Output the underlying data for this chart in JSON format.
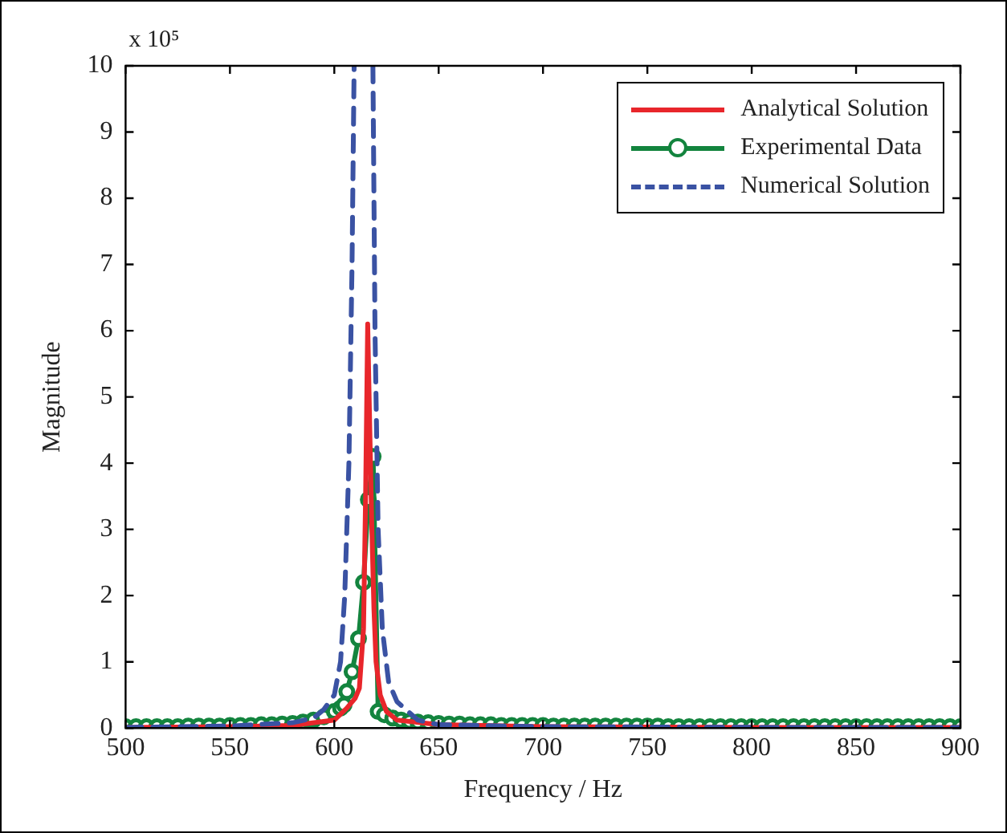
{
  "chart_data": {
    "type": "line",
    "xlabel": "Frequency / Hz",
    "ylabel": "Magnitude",
    "annotations": [
      "x 10⁵"
    ],
    "xlim": [
      500,
      900
    ],
    "xticks": [
      500,
      550,
      600,
      650,
      700,
      750,
      800,
      850,
      900
    ],
    "ylim": [
      0,
      10
    ],
    "yticks": [
      0,
      1,
      2,
      3,
      4,
      5,
      6,
      7,
      8,
      9,
      10
    ],
    "grid": false,
    "legend": "top right",
    "series": [
      {
        "name": "Analytical Solution",
        "color": "#e8262b",
        "line_style": "solid",
        "marker": "none",
        "x": [
          500,
          550,
          580,
          600,
          606,
          610,
          612,
          614,
          615,
          616,
          617,
          618,
          619,
          620,
          622,
          625,
          630,
          650,
          700,
          800,
          900
        ],
        "values": [
          0.01,
          0.02,
          0.04,
          0.12,
          0.3,
          0.45,
          0.6,
          1.5,
          3.5,
          6.1,
          4.5,
          3,
          1.8,
          1,
          0.5,
          0.25,
          0.12,
          0.05,
          0.02,
          0.01,
          0.01
        ]
      },
      {
        "name": "Experimental Data",
        "color": "#13843e",
        "line_style": "solid",
        "marker": "circle",
        "x": [
          500,
          505,
          510,
          515,
          520,
          525,
          530,
          535,
          540,
          545,
          550,
          555,
          560,
          565,
          570,
          575,
          580,
          585,
          590,
          595,
          600,
          603,
          604.7,
          606,
          608.5,
          611.6,
          614,
          616.3,
          618.6,
          621,
          624,
          628,
          632,
          636,
          640,
          645,
          650,
          655,
          660,
          665,
          670,
          675,
          680,
          685,
          690,
          695,
          700,
          705,
          710,
          715,
          720,
          725,
          730,
          735,
          740,
          745,
          750,
          755,
          760,
          765,
          770,
          775,
          780,
          785,
          790,
          795,
          800,
          805,
          810,
          815,
          820,
          825,
          830,
          835,
          840,
          845,
          850,
          855,
          860,
          865,
          870,
          875,
          880,
          885,
          890,
          895,
          900
        ],
        "values": [
          0.02,
          0.02,
          0.02,
          0.02,
          0.02,
          0.02,
          0.03,
          0.03,
          0.03,
          0.03,
          0.04,
          0.04,
          0.04,
          0.05,
          0.05,
          0.06,
          0.07,
          0.09,
          0.12,
          0.17,
          0.25,
          0.3,
          0.35,
          0.55,
          0.85,
          1.35,
          2.2,
          3.45,
          4.1,
          0.25,
          0.2,
          0.15,
          0.12,
          0.1,
          0.09,
          0.08,
          0.07,
          0.06,
          0.06,
          0.05,
          0.05,
          0.05,
          0.04,
          0.04,
          0.04,
          0.04,
          0.04,
          0.03,
          0.03,
          0.03,
          0.03,
          0.03,
          0.03,
          0.03,
          0.03,
          0.03,
          0.03,
          0.03,
          0.02,
          0.02,
          0.02,
          0.02,
          0.02,
          0.02,
          0.02,
          0.02,
          0.02,
          0.02,
          0.02,
          0.02,
          0.02,
          0.02,
          0.02,
          0.02,
          0.02,
          0.02,
          0.02,
          0.02,
          0.02,
          0.02,
          0.02,
          0.02,
          0.02,
          0.02,
          0.02,
          0.02,
          0.02
        ]
      },
      {
        "name": "Numerical Solution",
        "color": "#3a52a3",
        "line_style": "dashed",
        "marker": "none",
        "x": [
          500,
          550,
          580,
          590,
          595,
          600,
          603,
          605,
          607,
          608.5,
          609.5,
          613.5,
          618.5,
          619.5,
          621,
          623,
          626,
          630,
          640,
          650,
          700,
          800,
          900
        ],
        "values": [
          0.01,
          0.03,
          0.08,
          0.15,
          0.28,
          0.5,
          1,
          2,
          4,
          7,
          10,
          null,
          10,
          6,
          3,
          1.5,
          0.7,
          0.4,
          0.12,
          0.05,
          0.02,
          0.01,
          0.01
        ]
      }
    ]
  }
}
